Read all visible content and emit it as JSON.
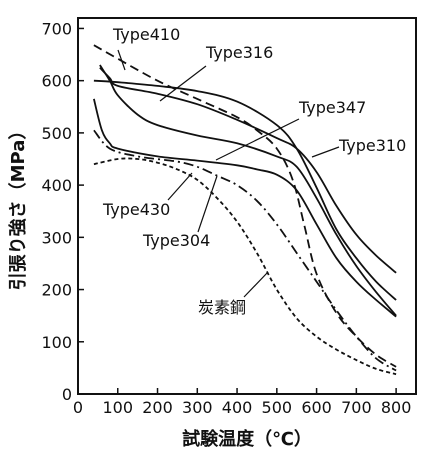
{
  "chart_data": {
    "type": "line",
    "xlabel": "試験温度（℃）",
    "ylabel": "引張り強さ（MPa）",
    "xlim": [
      0,
      850
    ],
    "ylim": [
      0,
      720
    ],
    "x_ticks": [
      0,
      100,
      200,
      300,
      400,
      500,
      600,
      700,
      800
    ],
    "y_ticks": [
      0,
      100,
      200,
      300,
      400,
      500,
      600,
      700
    ],
    "grid": false,
    "legend": "none",
    "series": [
      {
        "name": "Type410",
        "dash": "dashed",
        "points": [
          [
            40,
            668
          ],
          [
            100,
            642
          ],
          [
            200,
            600
          ],
          [
            300,
            565
          ],
          [
            400,
            530
          ],
          [
            450,
            505
          ],
          [
            500,
            470
          ],
          [
            540,
            410
          ],
          [
            570,
            320
          ],
          [
            600,
            230
          ],
          [
            650,
            155
          ],
          [
            700,
            110
          ],
          [
            750,
            75
          ],
          [
            800,
            52
          ]
        ]
      },
      {
        "name": "Type316",
        "dash": "solid",
        "points": [
          [
            40,
            600
          ],
          [
            100,
            597
          ],
          [
            200,
            590
          ],
          [
            300,
            580
          ],
          [
            400,
            560
          ],
          [
            500,
            515
          ],
          [
            550,
            470
          ],
          [
            600,
            395
          ],
          [
            650,
            315
          ],
          [
            700,
            260
          ],
          [
            750,
            215
          ],
          [
            800,
            180
          ]
        ]
      },
      {
        "name": "Type347",
        "dash": "solid",
        "points": [
          [
            55,
            630
          ],
          [
            80,
            600
          ],
          [
            100,
            572
          ],
          [
            150,
            535
          ],
          [
            200,
            515
          ],
          [
            300,
            495
          ],
          [
            400,
            480
          ],
          [
            500,
            455
          ],
          [
            550,
            435
          ],
          [
            600,
            375
          ],
          [
            650,
            305
          ],
          [
            700,
            245
          ],
          [
            750,
            195
          ],
          [
            800,
            150
          ]
        ]
      },
      {
        "name": "Type310",
        "dash": "solid",
        "points": [
          [
            55,
            625
          ],
          [
            80,
            605
          ],
          [
            100,
            590
          ],
          [
            200,
            575
          ],
          [
            300,
            555
          ],
          [
            400,
            525
          ],
          [
            500,
            490
          ],
          [
            550,
            470
          ],
          [
            600,
            425
          ],
          [
            650,
            360
          ],
          [
            700,
            305
          ],
          [
            750,
            265
          ],
          [
            800,
            232
          ]
        ]
      },
      {
        "name": "Type304",
        "dash": "solid",
        "points": [
          [
            40,
            565
          ],
          [
            60,
            505
          ],
          [
            80,
            480
          ],
          [
            100,
            470
          ],
          [
            200,
            455
          ],
          [
            300,
            447
          ],
          [
            400,
            438
          ],
          [
            450,
            430
          ],
          [
            500,
            420
          ],
          [
            550,
            390
          ],
          [
            600,
            325
          ],
          [
            650,
            260
          ],
          [
            700,
            215
          ],
          [
            750,
            180
          ],
          [
            800,
            148
          ]
        ]
      },
      {
        "name": "Type430",
        "dash": "dashdot",
        "points": [
          [
            40,
            505
          ],
          [
            80,
            470
          ],
          [
            150,
            455
          ],
          [
            250,
            445
          ],
          [
            300,
            435
          ],
          [
            350,
            418
          ],
          [
            400,
            400
          ],
          [
            450,
            370
          ],
          [
            500,
            325
          ],
          [
            550,
            270
          ],
          [
            600,
            215
          ],
          [
            650,
            160
          ],
          [
            700,
            110
          ],
          [
            750,
            68
          ],
          [
            800,
            45
          ]
        ]
      },
      {
        "name": "炭素鋼",
        "dash": "dotted",
        "points": [
          [
            40,
            440
          ],
          [
            100,
            450
          ],
          [
            150,
            450
          ],
          [
            200,
            443
          ],
          [
            250,
            430
          ],
          [
            300,
            410
          ],
          [
            350,
            375
          ],
          [
            400,
            330
          ],
          [
            450,
            270
          ],
          [
            500,
            200
          ],
          [
            550,
            145
          ],
          [
            600,
            110
          ],
          [
            650,
            85
          ],
          [
            700,
            65
          ],
          [
            750,
            48
          ],
          [
            800,
            38
          ]
        ]
      }
    ]
  }
}
